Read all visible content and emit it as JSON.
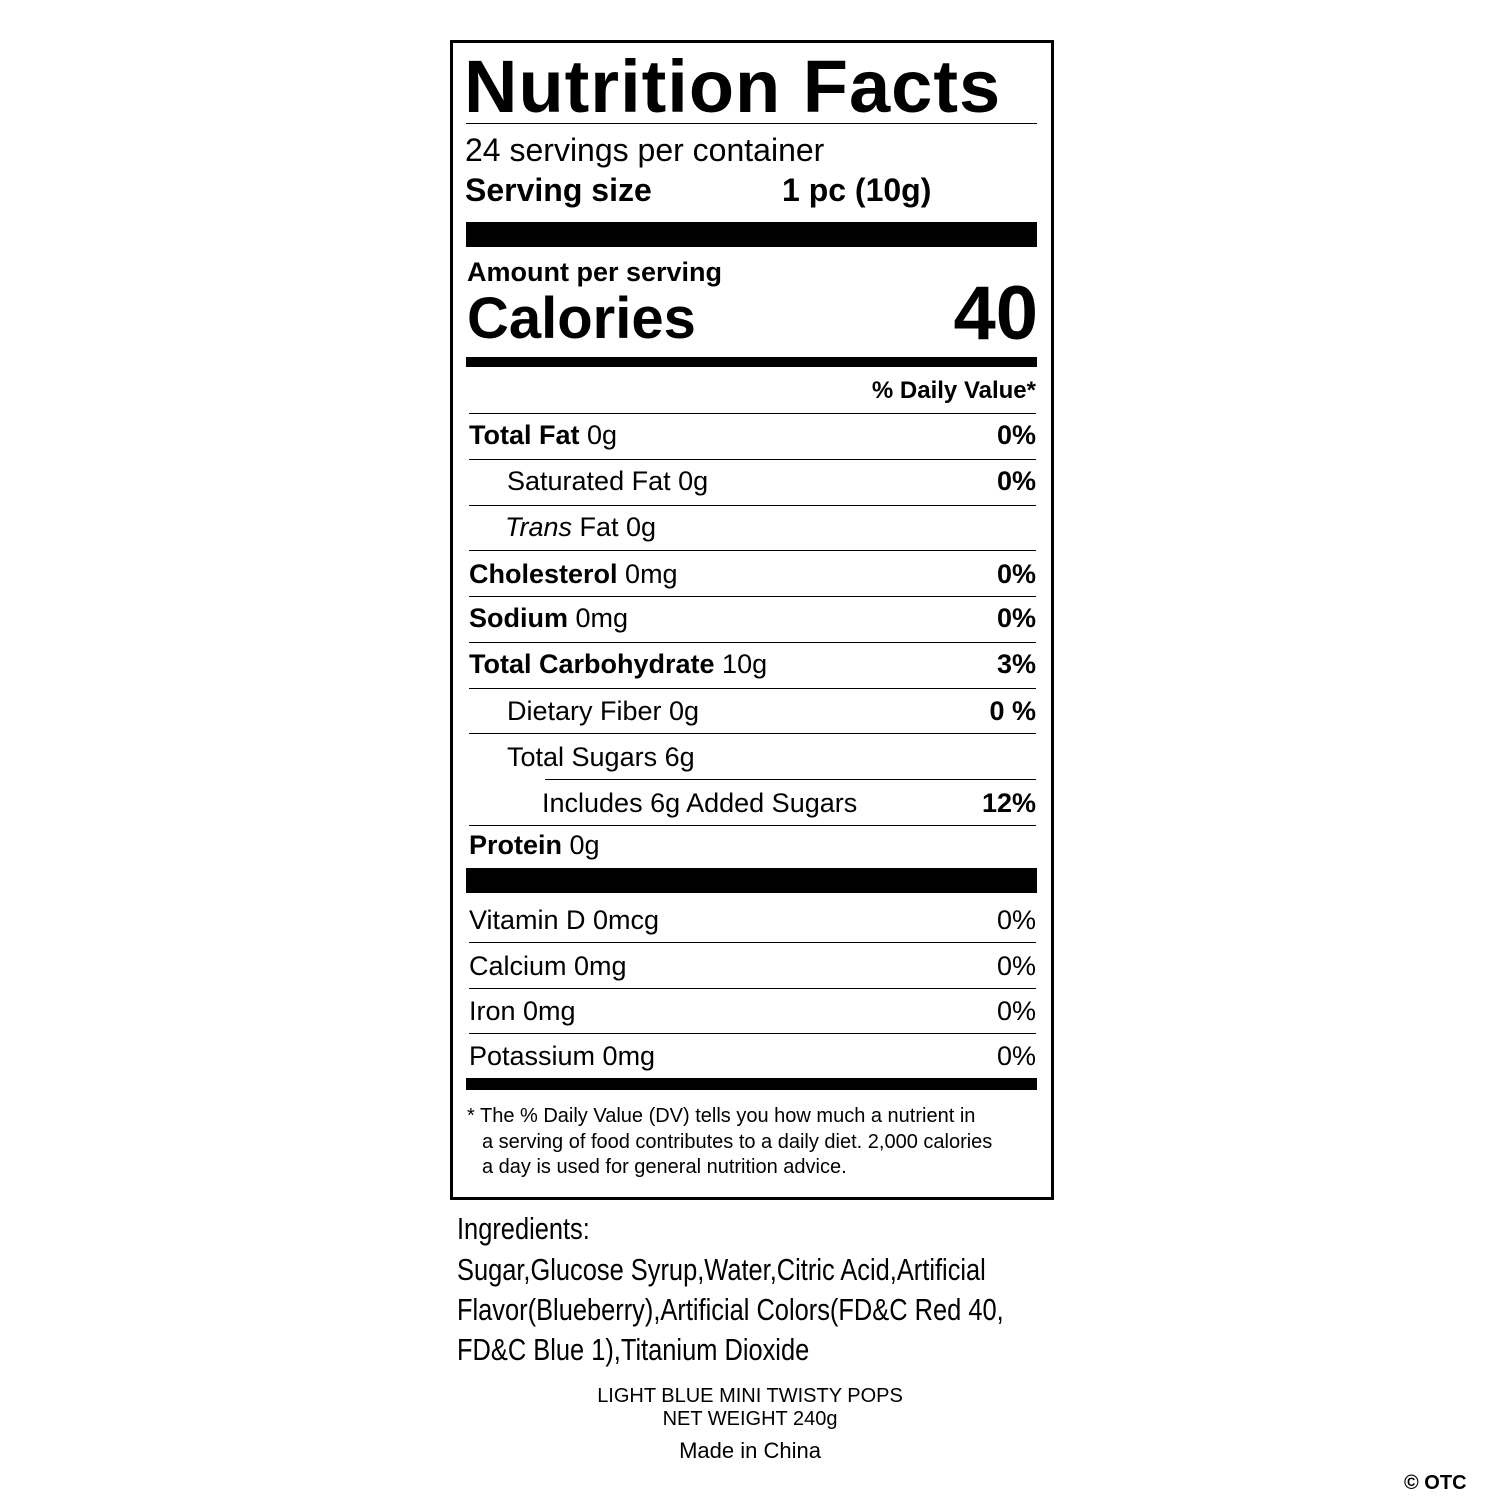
{
  "title": "Nutrition Facts",
  "servings": "24 servings per container",
  "serving_size_label": "Serving size",
  "serving_size_value": "1 pc (10g)",
  "amount_per_serving": "Amount per serving",
  "calories_label": "Calories",
  "calories_value": "40",
  "dv_header": "% Daily Value*",
  "nutrients": [
    {
      "name": "Total Fat",
      "amount": "0g",
      "dv": "0%"
    },
    {
      "name": "Saturated Fat 0g",
      "amount": "",
      "dv": "0%"
    },
    {
      "name": "Trans",
      "amount": "Fat 0g",
      "dv": ""
    },
    {
      "name": "Cholesterol",
      "amount": "0mg",
      "dv": "0%"
    },
    {
      "name": "Sodium",
      "amount": "0mg",
      "dv": "0%"
    },
    {
      "name": "Total Carbohydrate",
      "amount": "10g",
      "dv": "3%"
    },
    {
      "name": "Dietary Fiber 0g",
      "amount": "",
      "dv": "0 %"
    },
    {
      "name": "Total Sugars 6g",
      "amount": "",
      "dv": ""
    },
    {
      "name": "Includes 6g Added Sugars",
      "amount": "",
      "dv": "12%"
    },
    {
      "name": "Protein",
      "amount": "0g",
      "dv": ""
    }
  ],
  "vitamins": [
    {
      "name": "Vitamin D 0mcg",
      "dv": "0%"
    },
    {
      "name": "Calcium 0mg",
      "dv": "0%"
    },
    {
      "name": "Iron 0mg",
      "dv": "0%"
    },
    {
      "name": "Potassium 0mg",
      "dv": "0%"
    }
  ],
  "footnote": [
    "* The % Daily Value (DV) tells you how much a nutrient in",
    "a serving of food contributes to a daily diet. 2,000 calories",
    "a day is used for general nutrition advice."
  ],
  "ingredients": {
    "label": "Ingredients:",
    "lines": [
      "Sugar,Glucose Syrup,Water,Citric Acid,Artificial",
      "Flavor(Blueberry),Artificial Colors(FD&C Red 40,",
      "FD&C Blue 1),Titanium Dioxide"
    ]
  },
  "product_name": "LIGHT BLUE MINI TWISTY POPS",
  "net_weight": "NET WEIGHT 240g",
  "origin": "Made in China",
  "watermark": "© OTC"
}
